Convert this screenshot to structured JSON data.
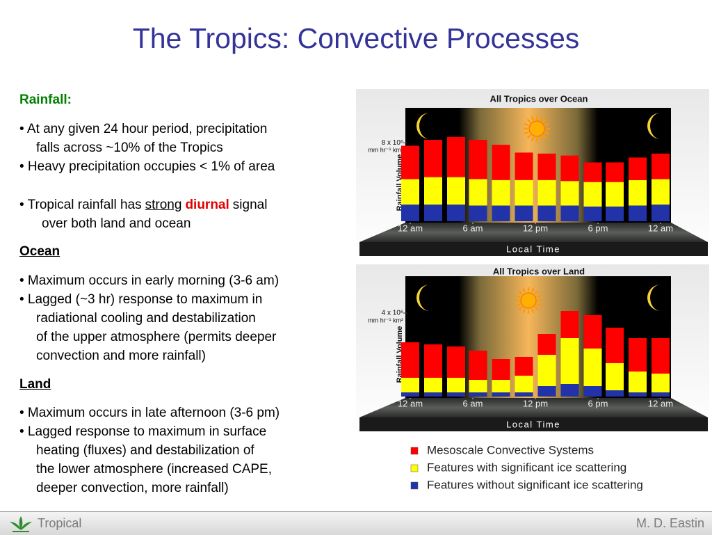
{
  "slide": {
    "title": "The Tropics: Convective Processes",
    "footer_left": "Tropical",
    "footer_right": "M. D. Eastin"
  },
  "rainfall": {
    "heading": "Rainfall:",
    "items": [
      [
        "• At any given 24 hour period, precipitation",
        "falls across ~10% of the Tropics"
      ],
      [
        "• Heavy precipitation occupies < 1% of area"
      ]
    ],
    "signal": {
      "lead": "• Tropical rainfall has",
      "underlined": "strong",
      "emphasis": "diurnal",
      "tail": "signal",
      "cont": "over both land and ocean"
    }
  },
  "ocean": {
    "heading": "Ocean",
    "items": [
      [
        "• Maximum occurs in early morning (3-6 am)"
      ],
      [
        "• Lagged (~3 hr) response to maximum in",
        "radiational cooling and destabilization",
        "of the upper atmosphere (permits deeper",
        "convection and more rainfall)"
      ]
    ]
  },
  "land": {
    "heading": "Land",
    "items": [
      [
        "• Maximum occurs in late afternoon (3-6 pm)"
      ],
      [
        "• Lagged response to maximum in surface",
        "heating (fluxes) and destabilization of",
        "the lower atmosphere (increased CAPE,",
        "deeper convection, more rainfall)"
      ]
    ]
  },
  "chart_data": [
    {
      "type": "bar",
      "stacked": true,
      "title": "All Tropics over Ocean",
      "ylabel": "Rainfall Volume",
      "y_unit": "mm hr⁻¹ km²",
      "xlabel": "Local Time",
      "x": [
        0,
        2.2,
        4.4,
        6.5,
        8.7,
        10.9,
        13.1,
        15.3,
        17.5,
        19.6,
        21.8,
        24
      ],
      "xlim": [
        -1.5,
        25.5
      ],
      "xticks": [
        {
          "value": 0,
          "label": "12 am"
        },
        {
          "value": 6,
          "label": "6 am"
        },
        {
          "value": 12,
          "label": "12 pm"
        },
        {
          "value": 18,
          "label": "6 pm"
        },
        {
          "value": 24,
          "label": "12 am"
        }
      ],
      "ylim": [
        0,
        11
      ],
      "yticks": [
        {
          "value": 8,
          "label": "8 x 10⁶"
        }
      ],
      "series": [
        {
          "color": "#ff0000",
          "values": [
            3.4,
            3.8,
            4.1,
            4.0,
            3.6,
            2.8,
            2.7,
            2.6,
            2.0,
            2.0,
            2.3,
            2.6
          ]
        },
        {
          "color": "#ffff00",
          "values": [
            2.6,
            2.8,
            2.8,
            2.7,
            2.6,
            2.6,
            2.6,
            2.5,
            2.5,
            2.5,
            2.6,
            2.6
          ]
        },
        {
          "color": "#2233aa",
          "values": [
            1.7,
            1.7,
            1.7,
            1.6,
            1.6,
            1.6,
            1.6,
            1.6,
            1.5,
            1.5,
            1.6,
            1.7
          ]
        }
      ]
    },
    {
      "type": "bar",
      "stacked": true,
      "title": "All Tropics over Land",
      "ylabel": "Rainfall Volume",
      "y_unit": "mm hr⁻¹ km²",
      "xlabel": "Local Time",
      "x": [
        0,
        2.2,
        4.4,
        6.5,
        8.7,
        10.9,
        13.1,
        15.3,
        17.5,
        19.6,
        21.8,
        24
      ],
      "xlim": [
        -1.5,
        25.5
      ],
      "xticks": [
        {
          "value": 0,
          "label": "12 am"
        },
        {
          "value": 6,
          "label": "6 am"
        },
        {
          "value": 12,
          "label": "12 pm"
        },
        {
          "value": 18,
          "label": "6 pm"
        },
        {
          "value": 24,
          "label": "12 am"
        }
      ],
      "ylim": [
        0,
        5.5
      ],
      "yticks": [
        {
          "value": 4,
          "label": "4 x 10⁶"
        }
      ],
      "series": [
        {
          "name": "Mesoscale Convective Systems",
          "color": "#ff0000",
          "values": [
            1.7,
            1.6,
            1.5,
            1.4,
            1.0,
            0.9,
            1.0,
            1.3,
            1.6,
            1.7,
            1.6,
            1.7
          ]
        },
        {
          "name": "Features with significant ice scattering",
          "color": "#ffff00",
          "values": [
            0.7,
            0.7,
            0.7,
            0.6,
            0.6,
            0.8,
            1.5,
            2.2,
            1.8,
            1.3,
            1.0,
            0.9
          ]
        },
        {
          "name": "Features without significant ice scattering",
          "color": "#2233aa",
          "values": [
            0.2,
            0.2,
            0.2,
            0.2,
            0.2,
            0.2,
            0.5,
            0.6,
            0.5,
            0.3,
            0.2,
            0.2
          ]
        }
      ]
    }
  ]
}
